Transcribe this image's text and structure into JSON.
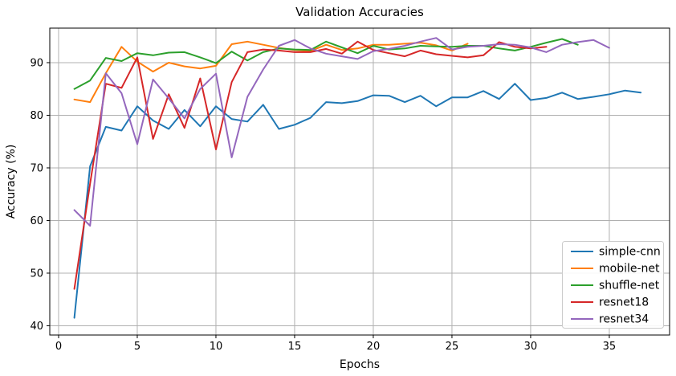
{
  "title": "Validation Accuracies",
  "xlabel": "Epochs",
  "ylabel": "Accuracy (%)",
  "chart_data": {
    "type": "line",
    "title": "Validation Accuracies",
    "xlabel": "Epochs",
    "ylabel": "Accuracy (%)",
    "x_ticks": [
      0,
      5,
      10,
      15,
      20,
      25,
      30,
      35
    ],
    "y_ticks": [
      40,
      50,
      60,
      70,
      80,
      90
    ],
    "xlim": [
      -0.56,
      38.83
    ],
    "ylim": [
      38.24,
      96.56
    ],
    "grid": true,
    "grid_color": "#b0b0b0",
    "legend_position": "lower right",
    "x_start_epoch": 1,
    "series": [
      {
        "name": "simple-cnn",
        "color": "#1f77b4",
        "values": [
          41.5,
          70.3,
          77.8,
          77.1,
          81.7,
          79.0,
          77.4,
          81.0,
          77.9,
          81.7,
          79.3,
          78.8,
          82.0,
          77.4,
          78.2,
          79.5,
          82.5,
          82.3,
          82.7,
          83.8,
          83.7,
          82.5,
          83.7,
          81.7,
          83.4,
          83.4,
          84.6,
          83.1,
          86.0,
          82.9,
          83.3,
          84.3,
          83.1,
          83.5,
          84.0,
          84.7,
          84.3
        ]
      },
      {
        "name": "mobile-net",
        "color": "#ff7f0e",
        "values": [
          83.0,
          82.5,
          88.0,
          93.0,
          90.2,
          88.3,
          90.0,
          89.3,
          88.9,
          89.4,
          93.5,
          94.0,
          93.4,
          92.8,
          92.4,
          92.2,
          93.4,
          92.4,
          92.7,
          93.4,
          93.4,
          93.6,
          93.8,
          93.3,
          92.3,
          93.6
        ]
      },
      {
        "name": "shuffle-net",
        "color": "#2ca02c",
        "values": [
          85.0,
          86.6,
          90.9,
          90.3,
          91.8,
          91.4,
          91.9,
          92.0,
          91.0,
          89.9,
          92.1,
          90.4,
          92.0,
          92.7,
          92.5,
          92.4,
          94.0,
          92.9,
          91.8,
          93.2,
          92.5,
          92.7,
          93.2,
          93.1,
          93.0,
          93.2,
          93.2,
          92.7,
          92.3,
          93.0,
          93.8,
          94.5,
          93.4
        ]
      },
      {
        "name": "resnet18",
        "color": "#d62728",
        "values": [
          47.0,
          67.0,
          86.0,
          85.2,
          91.0,
          75.5,
          84.0,
          77.6,
          87.0,
          73.5,
          86.3,
          92.0,
          92.5,
          92.3,
          92.0,
          92.0,
          92.6,
          91.7,
          94.0,
          92.4,
          91.8,
          91.2,
          92.3,
          91.6,
          91.3,
          91.0,
          91.4,
          93.9,
          93.0,
          92.7,
          93.0
        ]
      },
      {
        "name": "resnet34",
        "color": "#9467bd",
        "values": [
          62.0,
          59.0,
          88.0,
          84.2,
          74.5,
          86.8,
          83.2,
          79.4,
          85.0,
          87.9,
          72.0,
          83.5,
          88.7,
          93.2,
          94.3,
          92.7,
          91.7,
          91.2,
          90.7,
          92.2,
          92.6,
          93.2,
          94.0,
          94.7,
          92.5,
          93.0,
          93.2,
          93.5,
          93.4,
          92.9,
          92.0,
          93.4,
          93.9,
          94.3,
          92.8
        ]
      }
    ]
  }
}
